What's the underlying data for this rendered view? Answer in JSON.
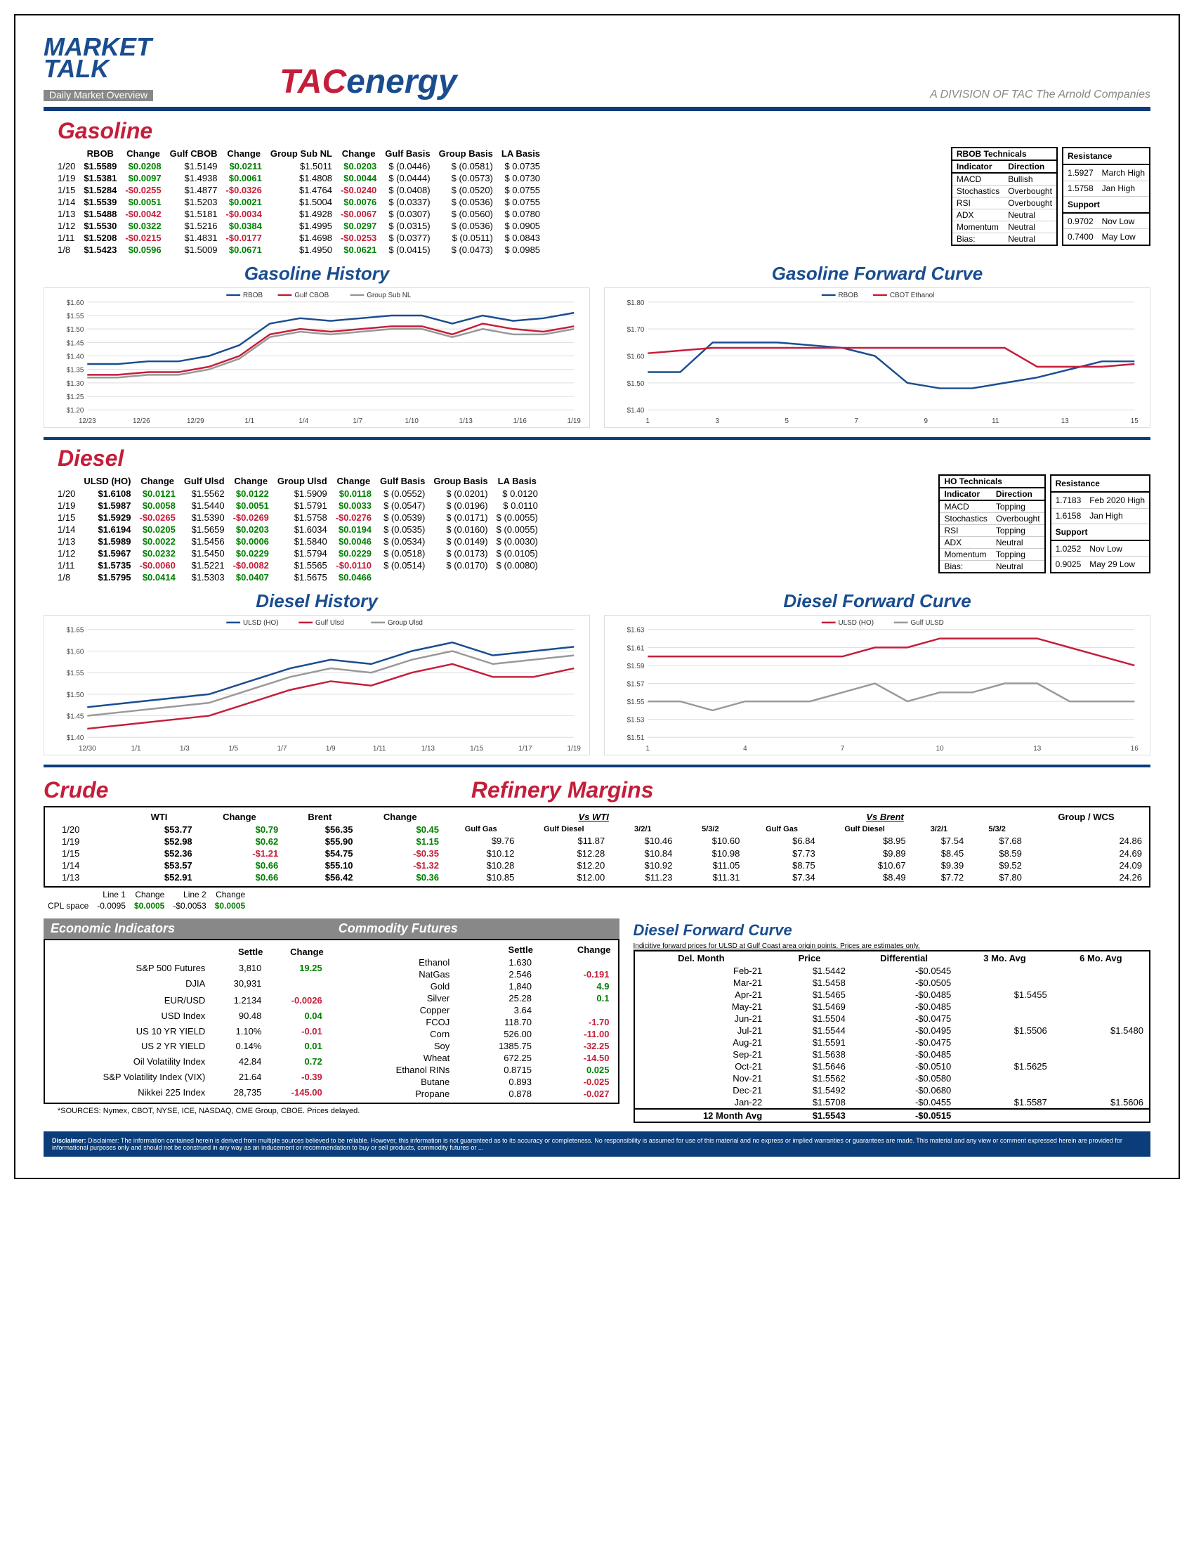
{
  "header": {
    "market": "MARKET",
    "talk": "TALK",
    "subtitle": "Daily Market Overview",
    "tac_t": "TAC",
    "tac_e": "energy",
    "division": "A DIVISION OF TAC The Arnold Companies"
  },
  "gasoline": {
    "title": "Gasoline",
    "headers": [
      "",
      "RBOB",
      "Change",
      "Gulf CBOB",
      "Change",
      "Group Sub NL",
      "Change",
      "Gulf Basis",
      "Group Basis",
      "LA Basis"
    ],
    "rows": [
      [
        "1/20",
        "$1.5589",
        "$0.0208",
        "$1.5149",
        "$0.0211",
        "$1.5011",
        "$0.0203",
        "$ (0.0446)",
        "$ (0.0581)",
        "$ 0.0735"
      ],
      [
        "1/19",
        "$1.5381",
        "$0.0097",
        "$1.4938",
        "$0.0061",
        "$1.4808",
        "$0.0044",
        "$ (0.0444)",
        "$ (0.0573)",
        "$ 0.0730"
      ],
      [
        "1/15",
        "$1.5284",
        "-$0.0255",
        "$1.4877",
        "-$0.0326",
        "$1.4764",
        "-$0.0240",
        "$ (0.0408)",
        "$ (0.0520)",
        "$ 0.0755"
      ],
      [
        "1/14",
        "$1.5539",
        "$0.0051",
        "$1.5203",
        "$0.0021",
        "$1.5004",
        "$0.0076",
        "$ (0.0337)",
        "$ (0.0536)",
        "$ 0.0755"
      ],
      [
        "1/13",
        "$1.5488",
        "-$0.0042",
        "$1.5181",
        "-$0.0034",
        "$1.4928",
        "-$0.0067",
        "$ (0.0307)",
        "$ (0.0560)",
        "$ 0.0780"
      ],
      [
        "1/12",
        "$1.5530",
        "$0.0322",
        "$1.5216",
        "$0.0384",
        "$1.4995",
        "$0.0297",
        "$ (0.0315)",
        "$ (0.0536)",
        "$ 0.0905"
      ],
      [
        "1/11",
        "$1.5208",
        "-$0.0215",
        "$1.4831",
        "-$0.0177",
        "$1.4698",
        "-$0.0253",
        "$ (0.0377)",
        "$ (0.0511)",
        "$ 0.0843"
      ],
      [
        "1/8",
        "$1.5423",
        "$0.0596",
        "$1.5009",
        "$0.0671",
        "$1.4950",
        "$0.0621",
        "$ (0.0415)",
        "$ (0.0473)",
        "$ 0.0985"
      ]
    ],
    "technicals": {
      "title": "RBOB Technicals",
      "cols": [
        "Indicator",
        "Direction"
      ],
      "rows": [
        [
          "MACD",
          "Bullish"
        ],
        [
          "Stochastics",
          "Overbought"
        ],
        [
          "RSI",
          "Overbought"
        ],
        [
          "ADX",
          "Neutral"
        ],
        [
          "Momentum",
          "Neutral"
        ],
        [
          "Bias:",
          "Neutral"
        ]
      ],
      "resistance": [
        [
          "1.5927",
          "March High"
        ],
        [
          "1.5758",
          "Jan High"
        ]
      ],
      "support": [
        [
          "0.9702",
          "Nov Low"
        ],
        [
          "0.7400",
          "May Low"
        ]
      ]
    },
    "history_title": "Gasoline History",
    "forward_title": "Gasoline Forward Curve",
    "history": {
      "legend": [
        "RBOB",
        "Gulf CBOB",
        "Group Sub NL"
      ],
      "colors": [
        "#1a4d8f",
        "#c41e3a",
        "#999"
      ],
      "xticks": [
        "12/23",
        "12/26",
        "12/29",
        "1/1",
        "1/4",
        "1/7",
        "1/10",
        "1/13",
        "1/16",
        "1/19"
      ],
      "ylim": [
        1.2,
        1.6
      ],
      "ystep": 0.05,
      "series": [
        [
          1.37,
          1.37,
          1.38,
          1.38,
          1.4,
          1.44,
          1.52,
          1.54,
          1.53,
          1.54,
          1.55,
          1.55,
          1.52,
          1.55,
          1.53,
          1.54,
          1.56
        ],
        [
          1.33,
          1.33,
          1.34,
          1.34,
          1.36,
          1.4,
          1.48,
          1.5,
          1.49,
          1.5,
          1.51,
          1.51,
          1.48,
          1.52,
          1.5,
          1.49,
          1.51
        ],
        [
          1.32,
          1.32,
          1.33,
          1.33,
          1.35,
          1.39,
          1.47,
          1.49,
          1.48,
          1.49,
          1.5,
          1.5,
          1.47,
          1.5,
          1.48,
          1.48,
          1.5
        ]
      ]
    },
    "forward": {
      "legend": [
        "RBOB",
        "CBOT Ethanol"
      ],
      "colors": [
        "#1a4d8f",
        "#c41e3a"
      ],
      "xticks": [
        "1",
        "3",
        "5",
        "7",
        "9",
        "11",
        "13",
        "15"
      ],
      "ylim": [
        1.4,
        1.8
      ],
      "ystep": 0.1,
      "series": [
        [
          1.54,
          1.54,
          1.65,
          1.65,
          1.65,
          1.64,
          1.63,
          1.6,
          1.5,
          1.48,
          1.48,
          1.5,
          1.52,
          1.55,
          1.58,
          1.58
        ],
        [
          1.61,
          1.62,
          1.63,
          1.63,
          1.63,
          1.63,
          1.63,
          1.63,
          1.63,
          1.63,
          1.63,
          1.63,
          1.56,
          1.56,
          1.56,
          1.57
        ]
      ]
    }
  },
  "diesel": {
    "title": "Diesel",
    "headers": [
      "",
      "ULSD (HO)",
      "Change",
      "Gulf Ulsd",
      "Change",
      "Group Ulsd",
      "Change",
      "Gulf Basis",
      "Group Basis",
      "LA Basis"
    ],
    "rows": [
      [
        "1/20",
        "$1.6108",
        "$0.0121",
        "$1.5562",
        "$0.0122",
        "$1.5909",
        "$0.0118",
        "$ (0.0552)",
        "$ (0.0201)",
        "$ 0.0120"
      ],
      [
        "1/19",
        "$1.5987",
        "$0.0058",
        "$1.5440",
        "$0.0051",
        "$1.5791",
        "$0.0033",
        "$ (0.0547)",
        "$ (0.0196)",
        "$ 0.0110"
      ],
      [
        "1/15",
        "$1.5929",
        "-$0.0265",
        "$1.5390",
        "-$0.0269",
        "$1.5758",
        "-$0.0276",
        "$ (0.0539)",
        "$ (0.0171)",
        "$ (0.0055)"
      ],
      [
        "1/14",
        "$1.6194",
        "$0.0205",
        "$1.5659",
        "$0.0203",
        "$1.6034",
        "$0.0194",
        "$ (0.0535)",
        "$ (0.0160)",
        "$ (0.0055)"
      ],
      [
        "1/13",
        "$1.5989",
        "$0.0022",
        "$1.5456",
        "$0.0006",
        "$1.5840",
        "$0.0046",
        "$ (0.0534)",
        "$ (0.0149)",
        "$ (0.0030)"
      ],
      [
        "1/12",
        "$1.5967",
        "$0.0232",
        "$1.5450",
        "$0.0229",
        "$1.5794",
        "$0.0229",
        "$ (0.0518)",
        "$ (0.0173)",
        "$ (0.0105)"
      ],
      [
        "1/11",
        "$1.5735",
        "-$0.0060",
        "$1.5221",
        "-$0.0082",
        "$1.5565",
        "-$0.0110",
        "$ (0.0514)",
        "$ (0.0170)",
        "$ (0.0080)"
      ],
      [
        "1/8",
        "$1.5795",
        "$0.0414",
        "$1.5303",
        "$0.0407",
        "$1.5675",
        "$0.0466",
        "",
        "",
        ""
      ]
    ],
    "technicals": {
      "title": "HO Technicals",
      "cols": [
        "Indicator",
        "Direction"
      ],
      "rows": [
        [
          "MACD",
          "Topping"
        ],
        [
          "Stochastics",
          "Overbought"
        ],
        [
          "RSI",
          "Topping"
        ],
        [
          "ADX",
          "Neutral"
        ],
        [
          "Momentum",
          "Topping"
        ],
        [
          "Bias:",
          "Neutral"
        ]
      ],
      "resistance": [
        [
          "1.7183",
          "Feb 2020 High"
        ],
        [
          "1.6158",
          "Jan High"
        ]
      ],
      "support": [
        [
          "1.0252",
          "Nov Low"
        ],
        [
          "0.9025",
          "May 29 Low"
        ]
      ]
    },
    "history_title": "Diesel History",
    "forward_title": "Diesel Forward Curve",
    "history": {
      "legend": [
        "ULSD (HO)",
        "Gulf Ulsd",
        "Group Ulsd"
      ],
      "colors": [
        "#1a4d8f",
        "#c41e3a",
        "#999"
      ],
      "xticks": [
        "12/30",
        "1/1",
        "1/3",
        "1/5",
        "1/7",
        "1/9",
        "1/11",
        "1/13",
        "1/15",
        "1/17",
        "1/19"
      ],
      "ylim": [
        1.4,
        1.65
      ],
      "ystep": 0.05,
      "series": [
        [
          1.47,
          1.48,
          1.49,
          1.5,
          1.53,
          1.56,
          1.58,
          1.57,
          1.6,
          1.62,
          1.59,
          1.6,
          1.61
        ],
        [
          1.42,
          1.43,
          1.44,
          1.45,
          1.48,
          1.51,
          1.53,
          1.52,
          1.55,
          1.57,
          1.54,
          1.54,
          1.56
        ],
        [
          1.45,
          1.46,
          1.47,
          1.48,
          1.51,
          1.54,
          1.56,
          1.55,
          1.58,
          1.6,
          1.57,
          1.58,
          1.59
        ]
      ]
    },
    "forward": {
      "legend": [
        "ULSD (HO)",
        "Gulf ULSD"
      ],
      "colors": [
        "#c41e3a",
        "#999"
      ],
      "xticks": [
        "1",
        "4",
        "7",
        "10",
        "13",
        "16"
      ],
      "ylim": [
        1.51,
        1.63
      ],
      "ystep": 0.02,
      "series": [
        [
          1.6,
          1.6,
          1.6,
          1.6,
          1.6,
          1.6,
          1.6,
          1.61,
          1.61,
          1.62,
          1.62,
          1.62,
          1.62,
          1.61,
          1.6,
          1.59
        ],
        [
          1.55,
          1.55,
          1.54,
          1.55,
          1.55,
          1.55,
          1.56,
          1.57,
          1.55,
          1.56,
          1.56,
          1.57,
          1.57,
          1.55,
          1.55,
          1.55
        ]
      ]
    }
  },
  "crude": {
    "title": "Crude",
    "headers": [
      "",
      "WTI",
      "Change",
      "Brent",
      "Change"
    ],
    "rows": [
      [
        "1/20",
        "$53.77",
        "$0.79",
        "$56.35",
        "$0.45"
      ],
      [
        "1/19",
        "$52.98",
        "$0.62",
        "$55.90",
        "$1.15"
      ],
      [
        "1/15",
        "$52.36",
        "-$1.21",
        "$54.75",
        "-$0.35"
      ],
      [
        "1/14",
        "$53.57",
        "$0.66",
        "$55.10",
        "-$1.32"
      ],
      [
        "1/13",
        "$52.91",
        "$0.66",
        "$56.42",
        "$0.36"
      ]
    ],
    "cpl": [
      "CPL space",
      "Line 1",
      "Change",
      "Line 2",
      "Change",
      "-0.0095",
      "$0.0005",
      "-$0.0053",
      "$0.0005"
    ]
  },
  "refinery": {
    "title": "Refinery Margins",
    "wti_hdr": "Vs WTI",
    "brent_hdr": "Vs Brent",
    "group_hdr": "Group / WCS",
    "sub": [
      "Gulf Gas",
      "Gulf Diesel",
      "3/2/1",
      "5/3/2",
      "Gulf Gas",
      "Gulf Diesel",
      "3/2/1",
      "5/3/2",
      ""
    ],
    "rows": [
      [
        "$9.76",
        "$11.87",
        "$10.46",
        "$10.60",
        "$6.84",
        "$8.95",
        "$7.54",
        "$7.68",
        "24.86"
      ],
      [
        "$10.12",
        "$12.28",
        "$10.84",
        "$10.98",
        "$7.73",
        "$9.89",
        "$8.45",
        "$8.59",
        "24.69"
      ],
      [
        "$10.28",
        "$12.20",
        "$10.92",
        "$11.05",
        "$8.75",
        "$10.67",
        "$9.39",
        "$9.52",
        "24.09"
      ],
      [
        "$10.85",
        "$12.00",
        "$11.23",
        "$11.31",
        "$7.34",
        "$8.49",
        "$7.72",
        "$7.80",
        "24.26"
      ]
    ]
  },
  "econ": {
    "title1": "Economic Indicators",
    "title2": "Commodity Futures",
    "left_hdr": [
      "",
      "Settle",
      "Change"
    ],
    "left": [
      [
        "S&P 500 Futures",
        "3,810",
        "19.25"
      ],
      [
        "DJIA",
        "30,931",
        ""
      ],
      [
        "",
        "",
        ""
      ],
      [
        "EUR/USD",
        "1.2134",
        "-0.0026"
      ],
      [
        "USD Index",
        "90.48",
        "0.04"
      ],
      [
        "US 10 YR YIELD",
        "1.10%",
        "-0.01"
      ],
      [
        "US 2 YR YIELD",
        "0.14%",
        "0.01"
      ],
      [
        "Oil Volatility Index",
        "42.84",
        "0.72"
      ],
      [
        "S&P Volatility Index (VIX)",
        "21.64",
        "-0.39"
      ],
      [
        "Nikkei 225 Index",
        "28,735",
        "-145.00"
      ]
    ],
    "right_hdr": [
      "",
      "Settle",
      "Change"
    ],
    "right": [
      [
        "Ethanol",
        "1.630",
        ""
      ],
      [
        "NatGas",
        "2.546",
        "-0.191"
      ],
      [
        "Gold",
        "1,840",
        "4.9"
      ],
      [
        "Silver",
        "25.28",
        "0.1"
      ],
      [
        "Copper",
        "3.64",
        ""
      ],
      [
        "FCOJ",
        "118.70",
        "-1.70"
      ],
      [
        "Corn",
        "526.00",
        "-11.00"
      ],
      [
        "Soy",
        "1385.75",
        "-32.25"
      ],
      [
        "Wheat",
        "672.25",
        "-14.50"
      ],
      [
        "Ethanol RINs",
        "0.8715",
        "0.025"
      ],
      [
        "Butane",
        "0.893",
        "-0.025"
      ],
      [
        "Propane",
        "0.878",
        "-0.027"
      ]
    ]
  },
  "diesel_fc": {
    "title": "Diesel Forward Curve",
    "sub": "Indicitive forward prices for ULSD at Gulf Coast area origin points.  Prices are estimates only.",
    "hdr": [
      "Del. Month",
      "Price",
      "Differential",
      "3 Mo. Avg",
      "6 Mo. Avg"
    ],
    "rows": [
      [
        "Feb-21",
        "$1.5442",
        "-$0.0545",
        "",
        ""
      ],
      [
        "Mar-21",
        "$1.5458",
        "-$0.0505",
        "",
        ""
      ],
      [
        "Apr-21",
        "$1.5465",
        "-$0.0485",
        "$1.5455",
        ""
      ],
      [
        "May-21",
        "$1.5469",
        "-$0.0485",
        "",
        ""
      ],
      [
        "Jun-21",
        "$1.5504",
        "-$0.0475",
        "",
        ""
      ],
      [
        "Jul-21",
        "$1.5544",
        "-$0.0495",
        "$1.5506",
        "$1.5480"
      ],
      [
        "Aug-21",
        "$1.5591",
        "-$0.0475",
        "",
        ""
      ],
      [
        "Sep-21",
        "$1.5638",
        "-$0.0485",
        "",
        ""
      ],
      [
        "Oct-21",
        "$1.5646",
        "-$0.0510",
        "$1.5625",
        ""
      ],
      [
        "Nov-21",
        "$1.5562",
        "-$0.0580",
        "",
        ""
      ],
      [
        "Dec-21",
        "$1.5492",
        "-$0.0680",
        "",
        ""
      ],
      [
        "Jan-22",
        "$1.5708",
        "-$0.0455",
        "$1.5587",
        "$1.5606"
      ]
    ],
    "avg": [
      "12 Month Avg",
      "$1.5543",
      "-$0.0515",
      "",
      ""
    ]
  },
  "footnote": "*SOURCES: Nymex, CBOT, NYSE, ICE, NASDAQ, CME Group, CBOE.   Prices delayed.",
  "disclaimer": "Disclaimer: The information contained herein is derived from multiple sources believed to be reliable. However, this information is not guaranteed as to its accuracy or completeness. No responsibility is assumed for use of this material and no express or implied warranties or guarantees are made. This material and any view or comment expressed herein are provided for informational purposes only and should not be construed in any way as an inducement or recommendation to buy or sell products, commodity futures or ..."
}
